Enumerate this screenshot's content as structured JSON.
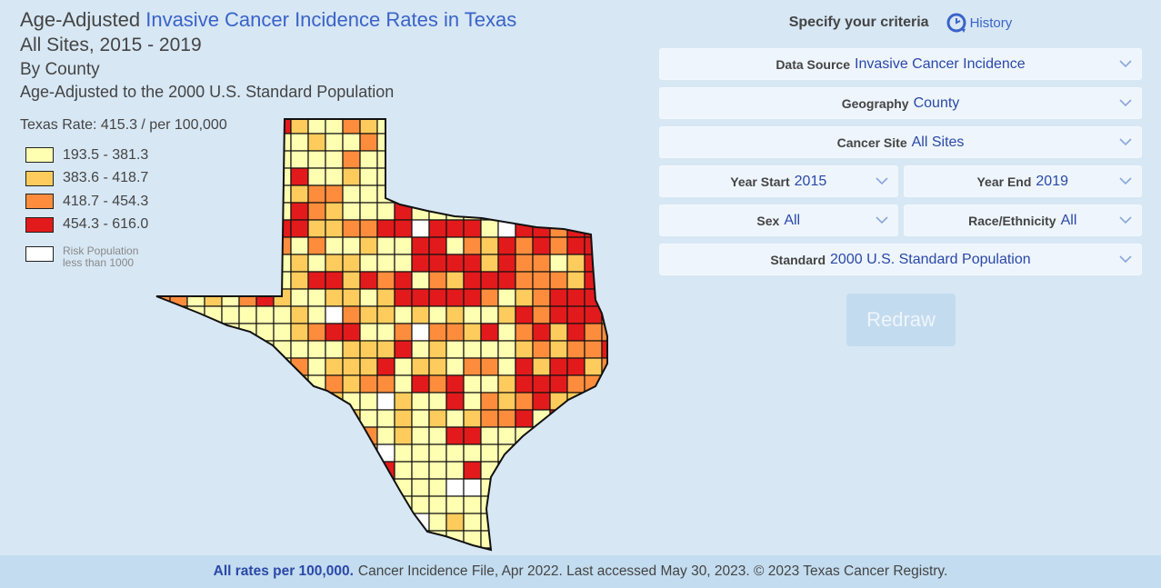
{
  "title": {
    "prefix": "Age-Adjusted",
    "highlight": "Invasive Cancer Incidence Rates in Texas",
    "line2": "All Sites, 2015 - 2019",
    "line3": "By County",
    "line4": "Age-Adjusted to the 2000 U.S. Standard Population"
  },
  "texas_rate": "Texas Rate: 415.3 / per 100,000",
  "legend": [
    {
      "label": "193.5 - 381.3",
      "color": "#ffffb2"
    },
    {
      "label": "383.6 - 418.7",
      "color": "#fecc5c"
    },
    {
      "label": "418.7 - 454.3",
      "color": "#fd8d3c"
    },
    {
      "label": "454.3 - 616.0",
      "color": "#e31a1c"
    }
  ],
  "legend_risk": {
    "line1": "Risk Population",
    "line2": "less than 1000",
    "color": "#ffffff"
  },
  "panel": {
    "heading": "Specify your criteria",
    "history": "History",
    "history_icon": "clock-refresh-icon",
    "data_source": {
      "label": "Data Source",
      "value": "Invasive Cancer Incidence"
    },
    "geography": {
      "label": "Geography",
      "value": "County"
    },
    "cancer_site": {
      "label": "Cancer Site",
      "value": "All Sites"
    },
    "year_start": {
      "label": "Year Start",
      "value": "2015"
    },
    "year_end": {
      "label": "Year End",
      "value": "2019"
    },
    "sex": {
      "label": "Sex",
      "value": "All"
    },
    "race": {
      "label": "Race/Ethnicity",
      "value": "All"
    },
    "standard": {
      "label": "Standard",
      "value": "2000 U.S. Standard Population"
    },
    "redraw": "Redraw"
  },
  "footer": {
    "bold": "All rates per 100,000.",
    "text": "Cancer Incidence File, Apr 2022. Last accessed May 30, 2023. © 2023 Texas Cancer Registry."
  }
}
